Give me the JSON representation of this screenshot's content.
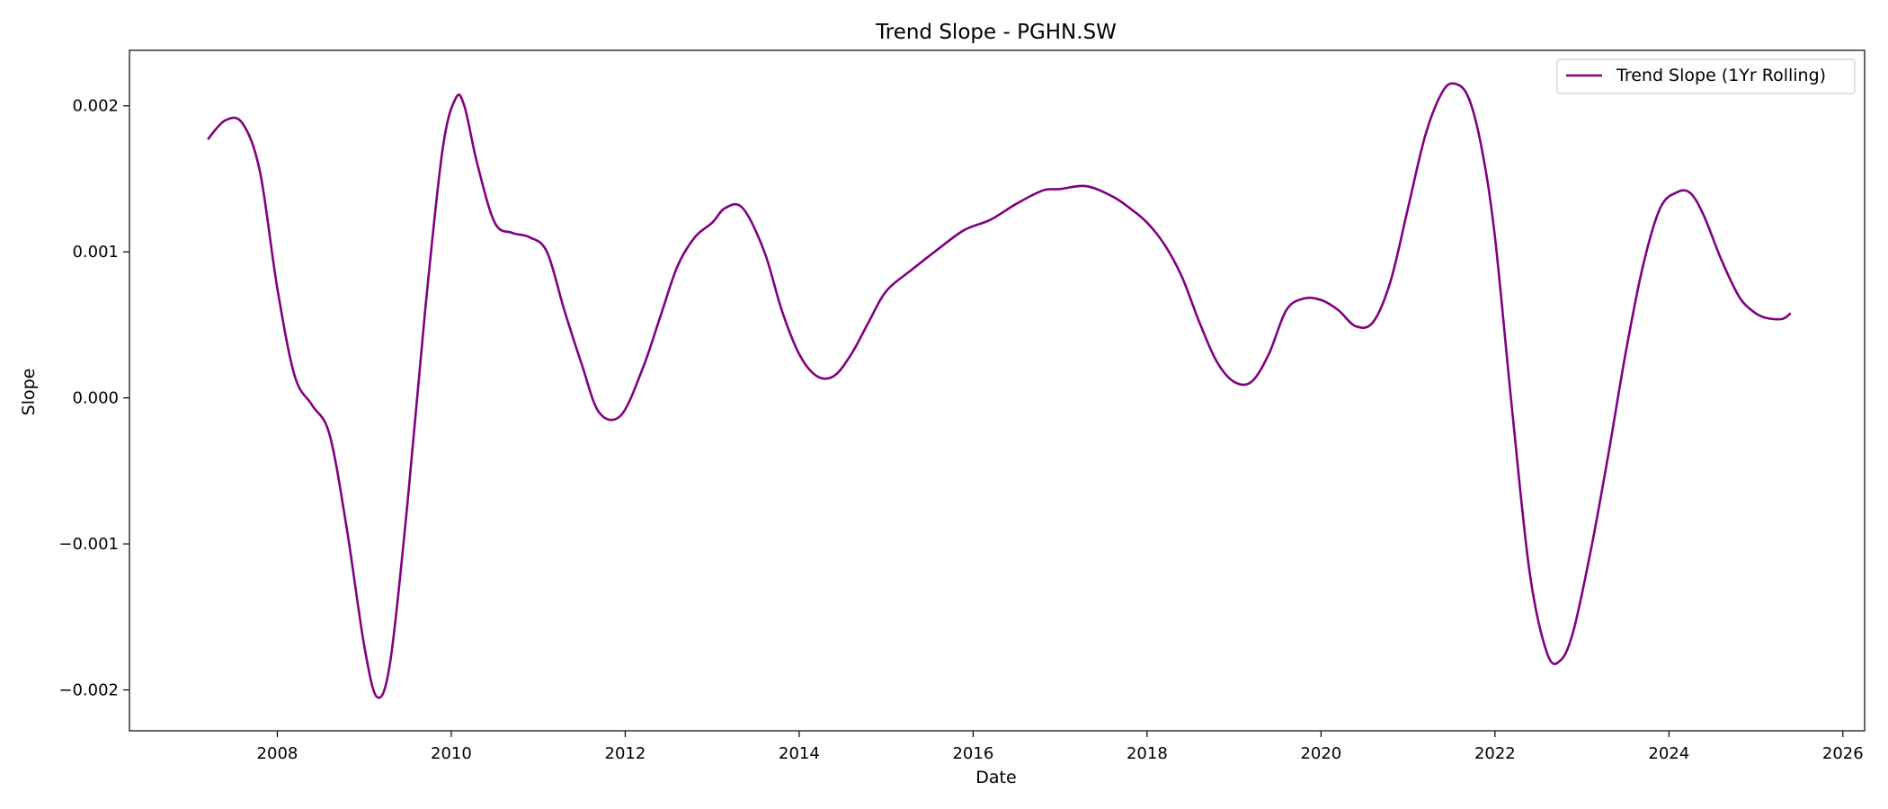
{
  "chart_data": {
    "type": "line",
    "title": "Trend Slope - PGHN.SW",
    "xlabel": "Date",
    "ylabel": "Slope",
    "xlim": [
      2006.3,
      2026.25
    ],
    "ylim": [
      -0.00228,
      0.00238
    ],
    "x_ticks": [
      2008,
      2010,
      2012,
      2014,
      2016,
      2018,
      2020,
      2022,
      2024,
      2026
    ],
    "x_tick_labels": [
      "2008",
      "2010",
      "2012",
      "2014",
      "2016",
      "2018",
      "2020",
      "2022",
      "2024",
      "2026"
    ],
    "y_ticks": [
      -0.002,
      -0.001,
      0.0,
      0.001,
      0.002
    ],
    "y_tick_labels": [
      "−0.002",
      "−0.001",
      "0.000",
      "0.001",
      "0.002"
    ],
    "grid": false,
    "legend_position": "top-right",
    "series": [
      {
        "name": "Trend Slope (1Yr Rolling)",
        "color": "#800080",
        "x": [
          2007.2,
          2007.4,
          2007.6,
          2007.8,
          2008.0,
          2008.2,
          2008.4,
          2008.6,
          2008.8,
          2009.0,
          2009.15,
          2009.3,
          2009.5,
          2009.7,
          2009.9,
          2010.05,
          2010.15,
          2010.3,
          2010.5,
          2010.7,
          2010.9,
          2011.1,
          2011.3,
          2011.5,
          2011.7,
          2011.95,
          2012.2,
          2012.4,
          2012.6,
          2012.8,
          2013.0,
          2013.15,
          2013.35,
          2013.6,
          2013.8,
          2014.0,
          2014.2,
          2014.4,
          2014.6,
          2014.8,
          2015.0,
          2015.3,
          2015.6,
          2015.9,
          2016.2,
          2016.5,
          2016.8,
          2017.0,
          2017.3,
          2017.6,
          2017.8,
          2018.0,
          2018.2,
          2018.4,
          2018.6,
          2018.8,
          2019.0,
          2019.2,
          2019.4,
          2019.6,
          2019.8,
          2020.0,
          2020.2,
          2020.4,
          2020.6,
          2020.8,
          2021.0,
          2021.2,
          2021.4,
          2021.55,
          2021.7,
          2021.85,
          2022.0,
          2022.2,
          2022.4,
          2022.6,
          2022.75,
          2022.9,
          2023.1,
          2023.3,
          2023.5,
          2023.7,
          2023.9,
          2024.1,
          2024.25,
          2024.4,
          2024.6,
          2024.8,
          2024.95,
          2025.1,
          2025.3,
          2025.4
        ],
        "y": [
          0.00177,
          0.0019,
          0.00188,
          0.00155,
          0.00075,
          0.00015,
          -5e-05,
          -0.00025,
          -0.0009,
          -0.0017,
          -0.00205,
          -0.0018,
          -0.0007,
          0.0006,
          0.0017,
          0.00205,
          0.002,
          0.0016,
          0.0012,
          0.00113,
          0.0011,
          0.001,
          0.0006,
          0.00023,
          -0.0001,
          -0.00012,
          0.0002,
          0.00055,
          0.0009,
          0.0011,
          0.0012,
          0.0013,
          0.0013,
          0.001,
          0.0006,
          0.0003,
          0.00015,
          0.00015,
          0.0003,
          0.00052,
          0.00073,
          0.00088,
          0.00102,
          0.00115,
          0.00122,
          0.00133,
          0.00142,
          0.00143,
          0.00145,
          0.00138,
          0.0013,
          0.0012,
          0.00105,
          0.00083,
          0.00052,
          0.00025,
          0.00011,
          0.00011,
          0.0003,
          0.0006,
          0.00068,
          0.00067,
          0.0006,
          0.00049,
          0.00052,
          0.0008,
          0.0013,
          0.0018,
          0.0021,
          0.00215,
          0.00205,
          0.0017,
          0.0011,
          -0.0001,
          -0.0012,
          -0.00175,
          -0.0018,
          -0.0016,
          -0.00105,
          -0.0004,
          0.0003,
          0.0009,
          0.0013,
          0.00141,
          0.0014,
          0.00125,
          0.00095,
          0.0007,
          0.0006,
          0.00055,
          0.00054,
          0.00058
        ]
      }
    ]
  }
}
